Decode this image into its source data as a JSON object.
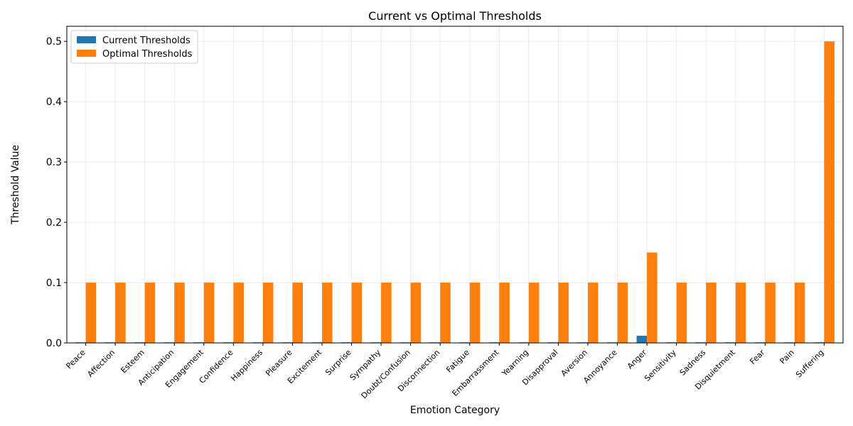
{
  "chart_data": {
    "type": "bar",
    "title": "Current vs Optimal Thresholds",
    "xlabel": "Emotion Category",
    "ylabel": "Threshold Value",
    "ylim": [
      0,
      0.525
    ],
    "yticks": [
      0.0,
      0.1,
      0.2,
      0.3,
      0.4,
      0.5
    ],
    "ytick_labels": [
      "0.0",
      "0.1",
      "0.2",
      "0.3",
      "0.4",
      "0.5"
    ],
    "grid": true,
    "legend_position": "top-left",
    "categories": [
      "Peace",
      "Affection",
      "Esteem",
      "Anticipation",
      "Engagement",
      "Confidence",
      "Happiness",
      "Pleasure",
      "Excitement",
      "Surprise",
      "Sympathy",
      "Doubt/Confusion",
      "Disconnection",
      "Fatigue",
      "Embarrassment",
      "Yearning",
      "Disapproval",
      "Aversion",
      "Annoyance",
      "Anger",
      "Sensitivity",
      "Sadness",
      "Disquietment",
      "Fear",
      "Pain",
      "Suffering"
    ],
    "series": [
      {
        "name": "Current Thresholds",
        "color": "#1f77b4",
        "values": [
          0.001,
          0.001,
          0.001,
          0.001,
          0.001,
          0.001,
          0.001,
          0.001,
          0.001,
          0.001,
          0.001,
          0.001,
          0.001,
          0.001,
          0.001,
          0.001,
          0.001,
          0.001,
          0.001,
          0.012,
          0.001,
          0.001,
          0.001,
          0.001,
          0.001,
          0.001
        ]
      },
      {
        "name": "Optimal Thresholds",
        "color": "#ff7f0e",
        "values": [
          0.1,
          0.1,
          0.1,
          0.1,
          0.1,
          0.1,
          0.1,
          0.1,
          0.1,
          0.1,
          0.1,
          0.1,
          0.1,
          0.1,
          0.1,
          0.1,
          0.1,
          0.1,
          0.1,
          0.15,
          0.1,
          0.1,
          0.1,
          0.1,
          0.1,
          0.5
        ]
      }
    ]
  }
}
